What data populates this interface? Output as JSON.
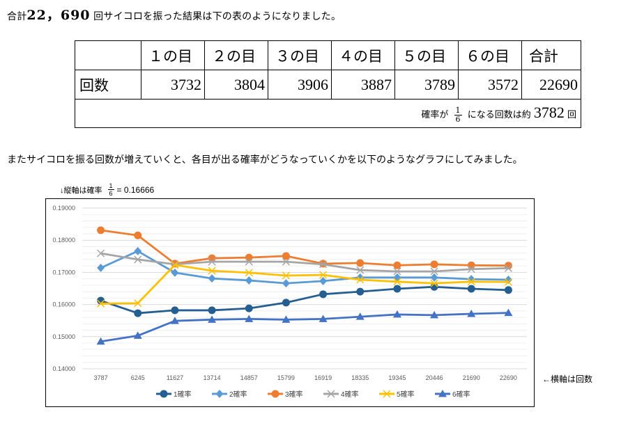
{
  "intro": {
    "prefix": "合計",
    "total_rolls": "22，690",
    "suffix": "回サイコロを振った結果は下の表のようになりました。"
  },
  "table": {
    "columns": [
      "",
      "１の目",
      "２の目",
      "３の目",
      "４の目",
      "５の目",
      "６の目",
      "合計"
    ],
    "row_label": "回数",
    "values": [
      "3732",
      "3804",
      "3906",
      "3887",
      "3789",
      "3572",
      "22690"
    ],
    "note": {
      "prefix": "確率が",
      "fraction_num": "1",
      "fraction_den": "6",
      "middle": "になる回数は約",
      "value": "3782",
      "suffix": "回"
    }
  },
  "sentence2": "またサイコロを振る回数が増えていくと、各目が出る確率がどうなっていくかを以下のようなグラフにしてみました。",
  "y_hint": {
    "prefix": "↓縦軸は確率",
    "fraction_num": "1",
    "fraction_den": "6",
    "equals": "= 0.16666"
  },
  "x_hint": "←横軸は回数",
  "chart_data": {
    "type": "line",
    "title": "",
    "xlabel": "",
    "ylabel": "",
    "categories": [
      "3787",
      "6245",
      "11627",
      "13714",
      "14857",
      "15799",
      "16919",
      "18335",
      "19345",
      "20446",
      "21690",
      "22690"
    ],
    "ylim": [
      0.14,
      0.19
    ],
    "y_major_step": 0.01,
    "y_minor_step": 0.002,
    "y_tick_labels": [
      "0.14000",
      "0.15000",
      "0.16000",
      "0.17000",
      "0.18000",
      "0.19000"
    ],
    "grid": true,
    "legend_position": "bottom",
    "series": [
      {
        "name": "1確率",
        "color": "#255e91",
        "marker": "circle",
        "values": [
          0.1612,
          0.1573,
          0.1582,
          0.1582,
          0.1588,
          0.1606,
          0.1632,
          0.164,
          0.1649,
          0.1655,
          0.1649,
          0.1645
        ]
      },
      {
        "name": "2確率",
        "color": "#5b9bd5",
        "marker": "diamond",
        "values": [
          0.1714,
          0.1766,
          0.1699,
          0.1681,
          0.1675,
          0.1666,
          0.1673,
          0.1684,
          0.1684,
          0.1684,
          0.1679,
          0.1677
        ]
      },
      {
        "name": "3確率",
        "color": "#ed7d31",
        "marker": "circle",
        "values": [
          0.1831,
          0.1815,
          0.1727,
          0.1744,
          0.1746,
          0.1751,
          0.1727,
          0.1729,
          0.1722,
          0.1725,
          0.1722,
          0.1721
        ]
      },
      {
        "name": "4確率",
        "color": "#a5a5a5",
        "marker": "x",
        "values": [
          0.1759,
          0.174,
          0.1725,
          0.1733,
          0.1733,
          0.1733,
          0.1725,
          0.1707,
          0.1703,
          0.1703,
          0.171,
          0.1713
        ]
      },
      {
        "name": "5確率",
        "color": "#ffc000",
        "marker": "x",
        "values": [
          0.1603,
          0.1604,
          0.1723,
          0.1705,
          0.1699,
          0.169,
          0.1692,
          0.1677,
          0.1671,
          0.1666,
          0.1671,
          0.167
        ]
      },
      {
        "name": "6確率",
        "color": "#4472c4",
        "marker": "triangle",
        "values": [
          0.1485,
          0.1503,
          0.1549,
          0.1553,
          0.1555,
          0.1553,
          0.1555,
          0.1562,
          0.1569,
          0.1567,
          0.1571,
          0.1574
        ]
      }
    ]
  }
}
